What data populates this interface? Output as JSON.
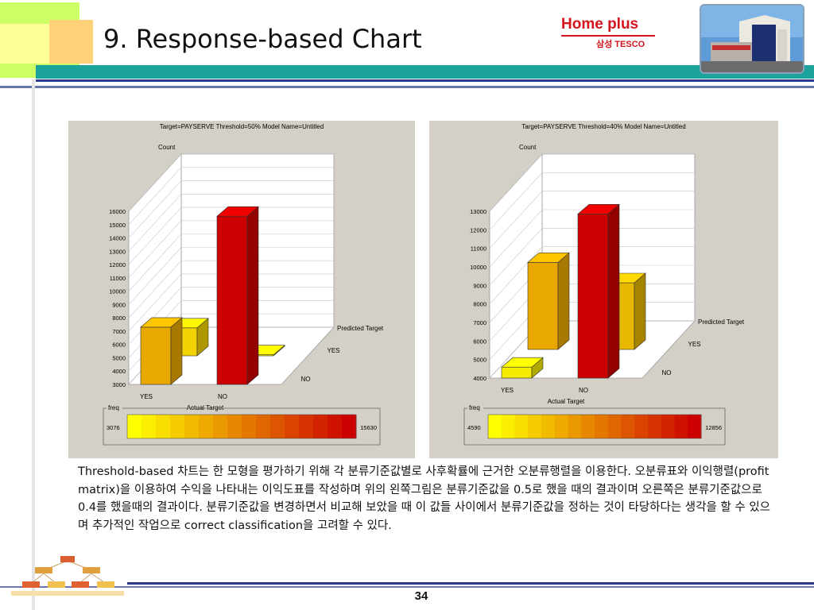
{
  "slide": {
    "title": "9. Response-based Chart",
    "brand_main": "Home plus",
    "brand_sub": "삼성 TESCO",
    "description": "Threshold-based 차트는 한 모형을 평가하기 위해 각 분류기준값별로 사후확률에 근거한 오분류행렬을 이용한다. 오분류표와 이익행렬(profit matrix)을 이용하여 수익을 나타내는 이익도표를 작성하며 위의 왼쪽그림은 분류기준값을 0.5로 했을 때의 결과이며 오른쪽은 분류기준값으로 0.4를 했을때의 결과이다.  분류기준값을 변경하면서 비교해 보았을 때 이 값들 사이에서 분류기준값을 정하는 것이 타당하다는 생각을 할 수 있으며 추가적인 작업으로 correct classification을 고려할 수 있다.",
    "page_number": "34",
    "colors": {
      "accent_teal": "#1ba39c",
      "accent_navy": "#2b3a8c",
      "brand_red": "#d4141c"
    }
  },
  "chart_data": [
    {
      "type": "bar",
      "title": "Target=PAYSERVE Threshold=50% Model Name=Untitled",
      "ylabel": "Count",
      "xlabel": "Actual Target",
      "zlabel": "Predicted Target",
      "categories": [
        "YES",
        "NO"
      ],
      "depth_categories": [
        "YES",
        "NO"
      ],
      "yticks": [
        3000,
        4000,
        5000,
        6000,
        7000,
        8000,
        9000,
        10000,
        11000,
        12000,
        13000,
        14000,
        15000,
        16000
      ],
      "ylim": [
        3000,
        16000
      ],
      "bars": [
        {
          "actual": "YES",
          "predicted": "NO",
          "value": 7300,
          "color": "#e8a800"
        },
        {
          "actual": "YES",
          "predicted": "YES",
          "value": 5100,
          "color": "#f2d200"
        },
        {
          "actual": "NO",
          "predicted": "NO",
          "value": 15630,
          "color": "#cc0000"
        },
        {
          "actual": "NO",
          "predicted": "YES",
          "value": 3076,
          "color": "#f5ec00"
        }
      ],
      "legend": {
        "label": "freq",
        "min": "3076",
        "max": "15630"
      }
    },
    {
      "type": "bar",
      "title": "Target=PAYSERVE Threshold=40% Model Name=Untitled",
      "ylabel": "Count",
      "xlabel": "Actual Target",
      "zlabel": "Predicted Target",
      "categories": [
        "YES",
        "NO"
      ],
      "depth_categories": [
        "YES",
        "NO"
      ],
      "yticks": [
        4000,
        5000,
        6000,
        7000,
        8000,
        9000,
        10000,
        11000,
        12000,
        13000
      ],
      "ylim": [
        4000,
        13000
      ],
      "bars": [
        {
          "actual": "YES",
          "predicted": "NO",
          "value": 4590,
          "color": "#f5ec00"
        },
        {
          "actual": "YES",
          "predicted": "YES",
          "value": 8700,
          "color": "#e8a800"
        },
        {
          "actual": "NO",
          "predicted": "NO",
          "value": 12856,
          "color": "#cc0000"
        },
        {
          "actual": "NO",
          "predicted": "YES",
          "value": 7600,
          "color": "#e8b800"
        }
      ],
      "legend": {
        "label": "freq",
        "min": "4590",
        "max": "12856"
      }
    }
  ]
}
